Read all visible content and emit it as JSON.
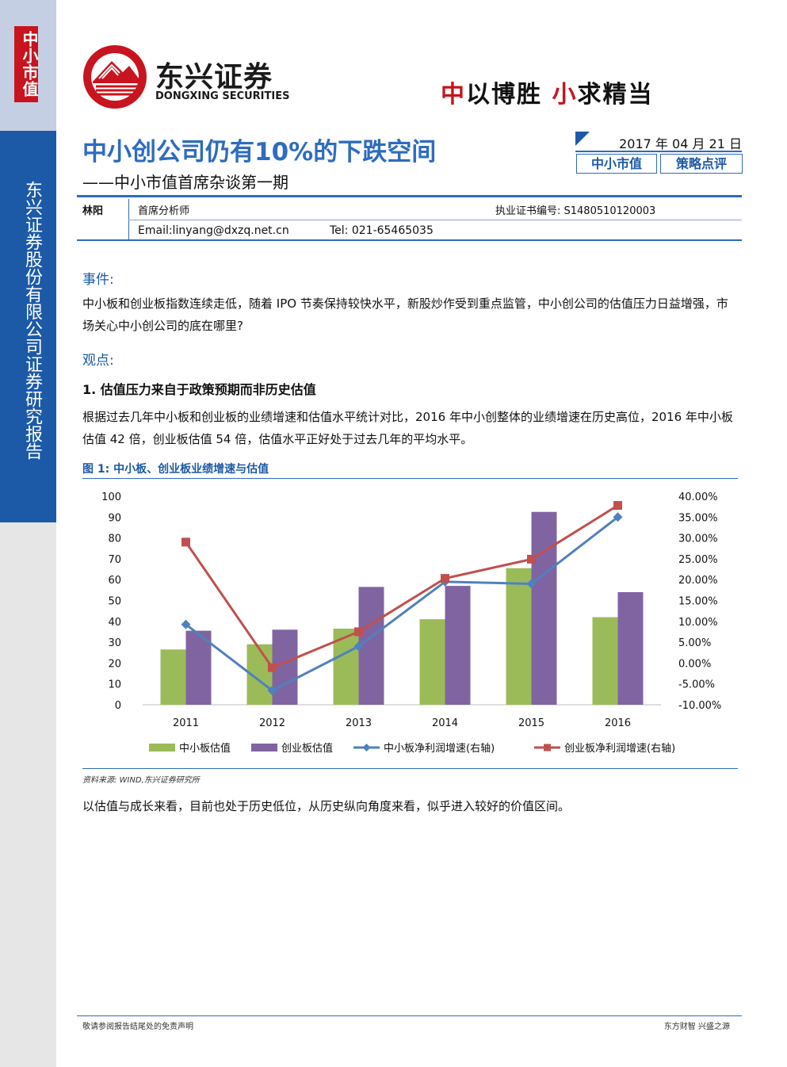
{
  "sidebar": {
    "tag": "中小市值",
    "company": "东兴证券股份有限公司证券研究报告"
  },
  "header": {
    "logo_cn": "东兴证券",
    "logo_en": "DONGXING SECURITIES",
    "slogan_parts": [
      "中",
      "以博胜 ",
      "小",
      "求精当"
    ],
    "colors": {
      "brand_red": "#c8141e",
      "brand_blue": "#1c5aa8"
    }
  },
  "report": {
    "title": "中小创公司仍有10%的下跌空间",
    "subtitle": "——中小市值首席杂谈第一期",
    "date": "2017 年 04 月 21 日",
    "tags": [
      "中小市值",
      "策略点评"
    ]
  },
  "author": {
    "name": "林阳",
    "role": "首席分析师",
    "cert": "执业证书编号: S1480510120003",
    "email": "Email:linyang@dxzq.net.cn",
    "tel": "Tel: 021-65465035"
  },
  "body": {
    "event_heading": "事件:",
    "event_text": "中小板和创业板指数连续走低，随着 IPO 节奏保持较快水平，新股炒作受到重点监管，中小创公司的估值压力日益增强，市场关心中小创公司的底在哪里?",
    "view_heading": "观点:",
    "point1": "1.  估值压力来自于政策预期而非历史估值",
    "point1_text": "根据过去几年中小板和创业板的业绩增速和估值水平统计对比，2016 年中小创整体的业绩增速在历史高位，2016 年中小板估值 42 倍，创业板估值 54 倍，估值水平正好处于过去几年的平均水平。",
    "figure_title": "图 1: 中小板、创业板业绩增速与估值",
    "source": "资料来源: WIND,东兴证券研究所",
    "conclusion": "以估值与成长来看，目前也处于历史低位，从历史纵向角度来看，似乎进入较好的价值区间。"
  },
  "footer": {
    "left": "敬请参阅报告结尾处的免责声明",
    "right": "东方财智  兴盛之源"
  },
  "chart_data": {
    "type": "bar",
    "categories": [
      "2011",
      "2012",
      "2013",
      "2014",
      "2015",
      "2016"
    ],
    "series": [
      {
        "name": "中小板估值",
        "type": "bar",
        "axis": "left",
        "color": "#9bbb59",
        "values": [
          26.5,
          29,
          36.5,
          41,
          65.5,
          42
        ]
      },
      {
        "name": "创业板估值",
        "type": "bar",
        "axis": "left",
        "color": "#8064a2",
        "values": [
          35.5,
          36,
          56.5,
          57,
          92.5,
          54
        ]
      },
      {
        "name": "中小板净利润增速(右轴)",
        "type": "line",
        "axis": "right",
        "color": "#4f81bd",
        "marker": "diamond",
        "values": [
          0.0925,
          -0.066,
          0.04,
          0.195,
          0.19,
          0.35
        ]
      },
      {
        "name": "创业板净利润增速(右轴)",
        "type": "line",
        "axis": "right",
        "color": "#c0504d",
        "marker": "square",
        "values": [
          0.29,
          -0.011,
          0.075,
          0.203,
          0.249,
          0.378
        ]
      }
    ],
    "ylim_left": [
      0,
      100
    ],
    "yticks_left": [
      "100",
      "90",
      "80",
      "70",
      "60",
      "50",
      "40",
      "30",
      "20",
      "10",
      "0"
    ],
    "ylim_right": [
      -0.1,
      0.4
    ],
    "yticks_right": [
      "40.00%",
      "35.00%",
      "30.00%",
      "25.00%",
      "20.00%",
      "15.00%",
      "10.00%",
      "5.00%",
      "0.00%",
      "-5.00%",
      "-10.00%"
    ],
    "legend": "bottom",
    "grid": false
  }
}
